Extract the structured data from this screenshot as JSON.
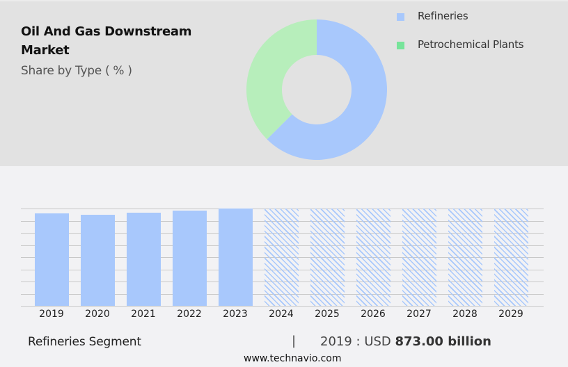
{
  "header": {
    "title_line1": "Oil And Gas Downstream",
    "title_line2": "Market",
    "subtitle": "Share by Type ( % )"
  },
  "legend": [
    {
      "label": "Refineries",
      "color": "#a8c8fc"
    },
    {
      "label": "Petrochemical Plants",
      "color": "#77e49a"
    }
  ],
  "colors": {
    "refineries_donut": "#a8c8fc",
    "petrochemical_donut": "#b7eebb",
    "bar": "#a8c8fc",
    "top_panel_bg": "#e2e2e2",
    "page_bg": "#f2f2f4"
  },
  "footer": {
    "segment_label": "Refineries Segment",
    "separator": "|",
    "value_prefix": "2019 : USD ",
    "value_bold": "873.00 billion",
    "url": "www.technavio.com"
  },
  "chart_data": [
    {
      "type": "pie",
      "title": "Oil And Gas Downstream Market - Share by Type ( % )",
      "categories": [
        "Refineries",
        "Petrochemical Plants"
      ],
      "values": [
        62.5,
        37.5
      ],
      "donut": true,
      "legend_position": "right"
    },
    {
      "type": "bar",
      "title": "Refineries Segment",
      "categories": [
        "2019",
        "2020",
        "2021",
        "2022",
        "2023",
        "2024",
        "2025",
        "2026",
        "2027",
        "2028",
        "2029"
      ],
      "values": [
        873,
        860,
        880,
        899,
        919,
        null,
        null,
        null,
        null,
        null,
        null
      ],
      "forecast_years": [
        "2024",
        "2025",
        "2026",
        "2027",
        "2028",
        "2029"
      ],
      "forecast_style": "hatched placeholder (full height)",
      "unit": "USD billion",
      "annotation": "2019 : USD 873.00 billion",
      "xlabel": "",
      "ylabel": "",
      "grid": true,
      "gridlines": 9,
      "y_axis_labels_shown": false
    }
  ]
}
